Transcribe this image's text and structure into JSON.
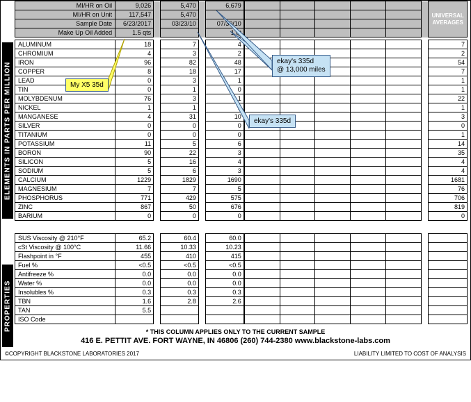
{
  "header_rows": [
    {
      "label": "MI/HR on Oil",
      "c1": "9,026",
      "c2": "5,470",
      "c3": "6,679"
    },
    {
      "label": "MI/HR on Unit",
      "c1": "117,547",
      "c2": "5,470",
      "c3": ""
    },
    {
      "label": "Sample Date",
      "c1": "6/23/2017",
      "c2": "03/23/10",
      "c3": "07/30/10"
    },
    {
      "label": "Make Up Oil Added",
      "c1": "1.5 qts",
      "c2": "",
      "c3": "1 qt"
    }
  ],
  "universal_averages_label": "UNIVERSAL AVERAGES",
  "elements_label": "ELEMENTS IN PARTS PER MILLION",
  "properties_label": "PROPERTIES",
  "elements": [
    {
      "name": "ALUMINUM",
      "c1": "18",
      "c2": "7",
      "c3": "4",
      "avg": "7"
    },
    {
      "name": "CHROMIUM",
      "c1": "4",
      "c2": "3",
      "c3": "2",
      "avg": "2"
    },
    {
      "name": "IRON",
      "c1": "96",
      "c2": "82",
      "c3": "48",
      "avg": "54"
    },
    {
      "name": "COPPER",
      "c1": "8",
      "c2": "18",
      "c3": "17",
      "avg": "7"
    },
    {
      "name": "LEAD",
      "c1": "0",
      "c2": "3",
      "c3": "1",
      "avg": "1"
    },
    {
      "name": "TIN",
      "c1": "0",
      "c2": "1",
      "c3": "0",
      "avg": "1"
    },
    {
      "name": "MOLYBDENUM",
      "c1": "76",
      "c2": "3",
      "c3": "1",
      "avg": "22"
    },
    {
      "name": "NICKEL",
      "c1": "1",
      "c2": "1",
      "c3": "1",
      "avg": "1"
    },
    {
      "name": "MANGANESE",
      "c1": "4",
      "c2": "31",
      "c3": "10",
      "avg": "3"
    },
    {
      "name": "SILVER",
      "c1": "0",
      "c2": "0",
      "c3": "0",
      "avg": "0"
    },
    {
      "name": "TITANIUM",
      "c1": "0",
      "c2": "0",
      "c3": "0",
      "avg": "1"
    },
    {
      "name": "POTASSIUM",
      "c1": "11",
      "c2": "5",
      "c3": "6",
      "avg": "14"
    },
    {
      "name": "BORON",
      "c1": "90",
      "c2": "22",
      "c3": "3",
      "avg": "35"
    },
    {
      "name": "SILICON",
      "c1": "5",
      "c2": "16",
      "c3": "4",
      "avg": "4"
    },
    {
      "name": "SODIUM",
      "c1": "5",
      "c2": "6",
      "c3": "3",
      "avg": "4"
    },
    {
      "name": "CALCIUM",
      "c1": "1229",
      "c2": "1829",
      "c3": "1690",
      "avg": "1681"
    },
    {
      "name": "MAGNESIUM",
      "c1": "7",
      "c2": "7",
      "c3": "5",
      "avg": "76"
    },
    {
      "name": "PHOSPHORUS",
      "c1": "771",
      "c2": "429",
      "c3": "575",
      "avg": "706"
    },
    {
      "name": "ZINC",
      "c1": "867",
      "c2": "50",
      "c3": "676",
      "avg": "819"
    },
    {
      "name": "BARIUM",
      "c1": "0",
      "c2": "0",
      "c3": "0",
      "avg": "0"
    }
  ],
  "properties": [
    {
      "name": "SUS Viscosity @ 210°F",
      "c1": "65.2",
      "c2": "60.4",
      "c3": "60.0"
    },
    {
      "name": "cSt Viscosity @ 100°C",
      "c1": "11.66",
      "c2": "10.33",
      "c3": "10.23"
    },
    {
      "name": "Flashpoint in °F",
      "c1": "455",
      "c2": "410",
      "c3": "415"
    },
    {
      "name": "Fuel %",
      "c1": "<0.5",
      "c2": "<0.5",
      "c3": "<0.5"
    },
    {
      "name": "Antifreeze %",
      "c1": "0.0",
      "c2": "0.0",
      "c3": "0.0"
    },
    {
      "name": "Water %",
      "c1": "0.0",
      "c2": "0.0",
      "c3": "0.0"
    },
    {
      "name": "Insolubles %",
      "c1": "0.3",
      "c2": "0.3",
      "c3": "0.3"
    },
    {
      "name": "TBN",
      "c1": "1.6",
      "c2": "2.8",
      "c3": "2.6"
    },
    {
      "name": "TAN",
      "c1": "5.5",
      "c2": "",
      "c3": ""
    },
    {
      "name": "ISO Code",
      "c1": "",
      "c2": "",
      "c3": ""
    }
  ],
  "callouts": {
    "yellow": "My X5 35d",
    "blue1": "ekay's  335d",
    "blue2a": "ekay's  335d",
    "blue2b": "@ 13,000 miles"
  },
  "column_note": "* THIS COLUMN APPLIES ONLY TO THE CURRENT SAMPLE",
  "address": "416 E. PETTIT AVE.    FORT WAYNE, IN  46806    (260) 744-2380    www.blackstone-labs.com",
  "copyright_left": "©COPYRIGHT BLACKSTONE LABORATORIES  2017",
  "copyright_right": "LIABILITY LIMITED TO COST OF ANALYSIS"
}
